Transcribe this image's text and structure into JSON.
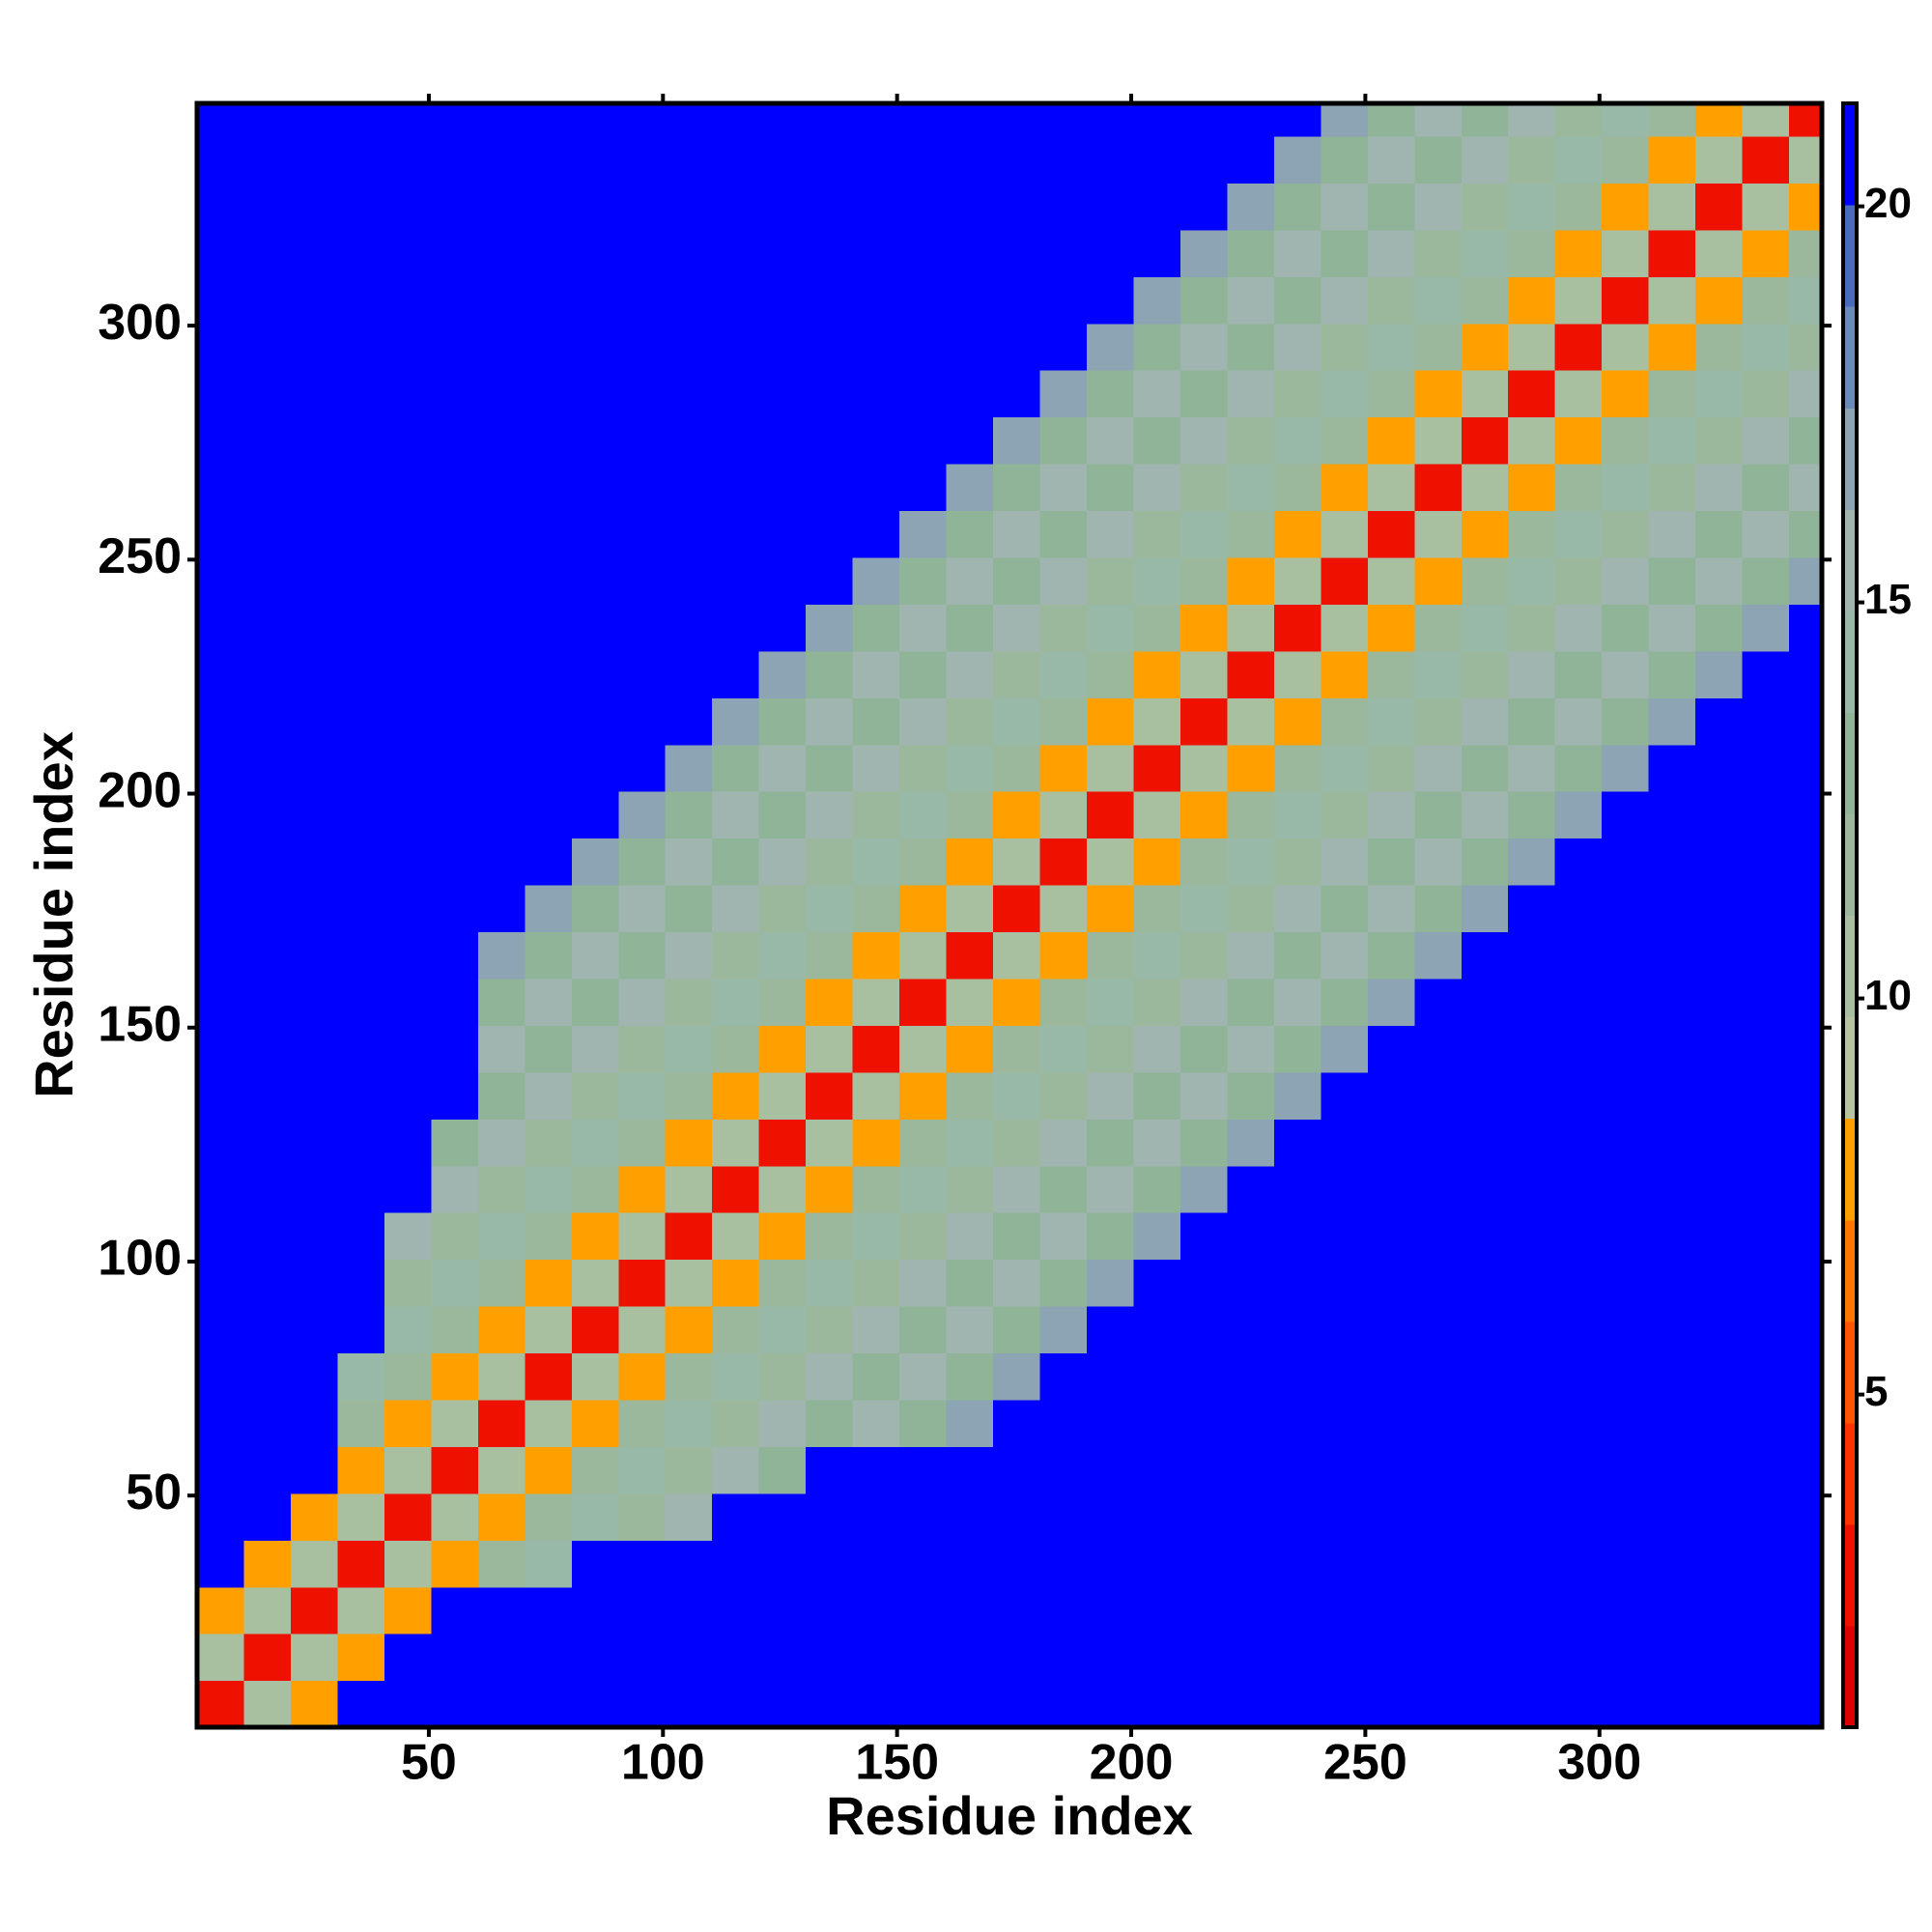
{
  "chart_data": {
    "type": "heatmap",
    "x_label": "Residue index",
    "y_label": "Residue index",
    "xlim": [
      0.5,
      347.5
    ],
    "ylim": [
      0.5,
      347.5
    ],
    "xticks": [
      50,
      100,
      150,
      200,
      250,
      300
    ],
    "yticks": [
      50,
      100,
      150,
      200,
      250,
      300
    ],
    "zlim": [
      0.8,
      21.3
    ],
    "zticks": [
      5,
      10,
      15,
      20
    ],
    "colors": [
      "#dd0000",
      "#ee1100",
      "#ff3300",
      "#ff5500",
      "#ff7700",
      "#ffa000",
      "#b8c4a0",
      "#a8c0a0",
      "#9cb89c",
      "#90b498",
      "#98b8a8",
      "#a0b4b0",
      "#8ca4b4",
      "#6a8ab8",
      "#4a6abc",
      "#0000ff"
    ],
    "bins": [
      0.5,
      10.5,
      20.5,
      30.5,
      40.5,
      50.5,
      60.5,
      70.5,
      80.5,
      90.5,
      100.5,
      110.5,
      120.5,
      130.5,
      140.5,
      150.5,
      160.5,
      170.5,
      180.5,
      190.5,
      200.5,
      210.5,
      220.5,
      230.5,
      240.5,
      250.5,
      260.5,
      270.5,
      280.5,
      290.5,
      300.5,
      310.5,
      320.5,
      330.5,
      340.5,
      347.5
    ],
    "z": [
      [
        3,
        11,
        8,
        21,
        21,
        21,
        21,
        21,
        21,
        21,
        21,
        21,
        21,
        21,
        21,
        21,
        21,
        21,
        21,
        21,
        21,
        21,
        21,
        21,
        21,
        21,
        21,
        21,
        21,
        21,
        21,
        21,
        21,
        21,
        21
      ],
      [
        11,
        3,
        11,
        8,
        21,
        21,
        21,
        21,
        21,
        21,
        21,
        21,
        21,
        21,
        21,
        21,
        21,
        21,
        21,
        21,
        21,
        21,
        21,
        21,
        21,
        21,
        21,
        21,
        21,
        21,
        21,
        21,
        21,
        21,
        21
      ],
      [
        8,
        11,
        3,
        11,
        8,
        21,
        21,
        21,
        21,
        21,
        21,
        21,
        21,
        21,
        21,
        21,
        21,
        21,
        21,
        21,
        21,
        21,
        21,
        21,
        21,
        21,
        21,
        21,
        21,
        21,
        21,
        21,
        21,
        21,
        21
      ],
      [
        21,
        8,
        11,
        3,
        11,
        8,
        12,
        14,
        21,
        21,
        21,
        21,
        21,
        21,
        21,
        21,
        21,
        21,
        21,
        21,
        21,
        21,
        21,
        21,
        21,
        21,
        21,
        21,
        21,
        21,
        21,
        21,
        21,
        21,
        21
      ],
      [
        21,
        21,
        8,
        11,
        3,
        11,
        8,
        12,
        14,
        12,
        15,
        21,
        21,
        21,
        21,
        21,
        21,
        21,
        21,
        21,
        21,
        21,
        21,
        21,
        21,
        21,
        21,
        21,
        21,
        21,
        21,
        21,
        21,
        21,
        21
      ],
      [
        21,
        21,
        21,
        8,
        11,
        3,
        11,
        8,
        12,
        14,
        12,
        15,
        13,
        21,
        21,
        21,
        21,
        21,
        21,
        21,
        21,
        21,
        21,
        21,
        21,
        21,
        21,
        21,
        21,
        21,
        21,
        21,
        21,
        21,
        21
      ],
      [
        21,
        21,
        21,
        12,
        8,
        11,
        3,
        11,
        8,
        12,
        14,
        12,
        15,
        13,
        16,
        13,
        17,
        21,
        21,
        21,
        21,
        21,
        21,
        21,
        21,
        21,
        21,
        21,
        21,
        21,
        21,
        21,
        21,
        21,
        21
      ],
      [
        21,
        21,
        21,
        14,
        12,
        8,
        11,
        3,
        11,
        8,
        12,
        14,
        12,
        15,
        13,
        16,
        13,
        17,
        21,
        21,
        21,
        21,
        21,
        21,
        21,
        21,
        21,
        21,
        21,
        21,
        21,
        21,
        21,
        21,
        21
      ],
      [
        21,
        21,
        21,
        21,
        14,
        12,
        8,
        11,
        3,
        11,
        8,
        12,
        14,
        12,
        15,
        13,
        16,
        13,
        17,
        21,
        21,
        21,
        21,
        21,
        21,
        21,
        21,
        21,
        21,
        21,
        21,
        21,
        21,
        21,
        21
      ],
      [
        21,
        21,
        21,
        21,
        12,
        14,
        12,
        8,
        11,
        3,
        11,
        8,
        12,
        14,
        12,
        15,
        13,
        16,
        13,
        17,
        21,
        21,
        21,
        21,
        21,
        21,
        21,
        21,
        21,
        21,
        21,
        21,
        21,
        21,
        21
      ],
      [
        21,
        21,
        21,
        21,
        15,
        12,
        14,
        12,
        8,
        11,
        3,
        11,
        8,
        12,
        14,
        12,
        15,
        13,
        16,
        13,
        17,
        21,
        21,
        21,
        21,
        21,
        21,
        21,
        21,
        21,
        21,
        21,
        21,
        21,
        21
      ],
      [
        21,
        21,
        21,
        21,
        21,
        15,
        12,
        14,
        12,
        8,
        11,
        3,
        11,
        8,
        12,
        14,
        12,
        15,
        13,
        16,
        13,
        17,
        21,
        21,
        21,
        21,
        21,
        21,
        21,
        21,
        21,
        21,
        21,
        21,
        21
      ],
      [
        21,
        21,
        21,
        21,
        21,
        13,
        15,
        12,
        14,
        12,
        8,
        11,
        3,
        11,
        8,
        12,
        14,
        12,
        15,
        13,
        16,
        13,
        17,
        21,
        21,
        21,
        21,
        21,
        21,
        21,
        21,
        21,
        21,
        21,
        21
      ],
      [
        21,
        21,
        21,
        21,
        21,
        21,
        13,
        15,
        12,
        14,
        12,
        8,
        11,
        3,
        11,
        8,
        12,
        14,
        12,
        15,
        13,
        16,
        13,
        17,
        21,
        21,
        21,
        21,
        21,
        21,
        21,
        21,
        21,
        21,
        21
      ],
      [
        21,
        21,
        21,
        21,
        21,
        21,
        16,
        13,
        15,
        12,
        14,
        12,
        8,
        11,
        3,
        11,
        8,
        12,
        14,
        12,
        15,
        13,
        16,
        13,
        17,
        21,
        21,
        21,
        21,
        21,
        21,
        21,
        21,
        21,
        21
      ],
      [
        21,
        21,
        21,
        21,
        21,
        21,
        13,
        16,
        13,
        15,
        12,
        14,
        12,
        8,
        11,
        3,
        11,
        8,
        12,
        14,
        12,
        15,
        13,
        16,
        13,
        17,
        21,
        21,
        21,
        21,
        21,
        21,
        21,
        21,
        21
      ],
      [
        21,
        21,
        21,
        21,
        21,
        21,
        17,
        13,
        16,
        13,
        15,
        12,
        14,
        12,
        8,
        11,
        3,
        11,
        8,
        12,
        14,
        12,
        15,
        13,
        16,
        13,
        17,
        21,
        21,
        21,
        21,
        21,
        21,
        21,
        21
      ],
      [
        21,
        21,
        21,
        21,
        21,
        21,
        21,
        17,
        13,
        16,
        13,
        15,
        12,
        14,
        12,
        8,
        11,
        3,
        11,
        8,
        12,
        14,
        12,
        15,
        13,
        16,
        13,
        17,
        21,
        21,
        21,
        21,
        21,
        21,
        21
      ],
      [
        21,
        21,
        21,
        21,
        21,
        21,
        21,
        21,
        17,
        13,
        16,
        13,
        15,
        12,
        14,
        12,
        8,
        11,
        3,
        11,
        8,
        12,
        14,
        12,
        15,
        13,
        16,
        13,
        17,
        21,
        21,
        21,
        21,
        21,
        21
      ],
      [
        21,
        21,
        21,
        21,
        21,
        21,
        21,
        21,
        21,
        17,
        13,
        16,
        13,
        15,
        12,
        14,
        12,
        8,
        11,
        3,
        11,
        8,
        12,
        14,
        12,
        15,
        13,
        16,
        13,
        17,
        21,
        21,
        21,
        21,
        21
      ],
      [
        21,
        21,
        21,
        21,
        21,
        21,
        21,
        21,
        21,
        21,
        17,
        13,
        16,
        13,
        15,
        12,
        14,
        12,
        8,
        11,
        3,
        11,
        8,
        12,
        14,
        12,
        15,
        13,
        16,
        13,
        17,
        21,
        21,
        21,
        21
      ],
      [
        21,
        21,
        21,
        21,
        21,
        21,
        21,
        21,
        21,
        21,
        21,
        17,
        13,
        16,
        13,
        15,
        12,
        14,
        12,
        8,
        11,
        3,
        11,
        8,
        12,
        14,
        12,
        15,
        13,
        16,
        13,
        17,
        21,
        21,
        21
      ],
      [
        21,
        21,
        21,
        21,
        21,
        21,
        21,
        21,
        21,
        21,
        21,
        21,
        17,
        13,
        16,
        13,
        15,
        12,
        14,
        12,
        8,
        11,
        3,
        11,
        8,
        12,
        14,
        12,
        15,
        13,
        16,
        13,
        17,
        21,
        21
      ],
      [
        21,
        21,
        21,
        21,
        21,
        21,
        21,
        21,
        21,
        21,
        21,
        21,
        21,
        17,
        13,
        16,
        13,
        15,
        12,
        14,
        12,
        8,
        11,
        3,
        11,
        8,
        12,
        14,
        12,
        15,
        13,
        16,
        13,
        17,
        21
      ],
      [
        21,
        21,
        21,
        21,
        21,
        21,
        21,
        21,
        21,
        21,
        21,
        21,
        21,
        21,
        17,
        13,
        16,
        13,
        15,
        12,
        14,
        12,
        8,
        11,
        3,
        11,
        8,
        12,
        14,
        12,
        15,
        13,
        16,
        13,
        17
      ],
      [
        21,
        21,
        21,
        21,
        21,
        21,
        21,
        21,
        21,
        21,
        21,
        21,
        21,
        21,
        21,
        17,
        13,
        16,
        13,
        15,
        12,
        14,
        12,
        8,
        11,
        3,
        11,
        8,
        12,
        14,
        12,
        15,
        13,
        16,
        13
      ],
      [
        21,
        21,
        21,
        21,
        21,
        21,
        21,
        21,
        21,
        21,
        21,
        21,
        21,
        21,
        21,
        21,
        17,
        13,
        16,
        13,
        15,
        12,
        14,
        12,
        8,
        11,
        3,
        11,
        8,
        12,
        14,
        12,
        15,
        13,
        16
      ],
      [
        21,
        21,
        21,
        21,
        21,
        21,
        21,
        21,
        21,
        21,
        21,
        21,
        21,
        21,
        21,
        21,
        21,
        17,
        13,
        16,
        13,
        15,
        12,
        14,
        12,
        8,
        11,
        3,
        11,
        8,
        12,
        14,
        12,
        15,
        13
      ],
      [
        21,
        21,
        21,
        21,
        21,
        21,
        21,
        21,
        21,
        21,
        21,
        21,
        21,
        21,
        21,
        21,
        21,
        21,
        17,
        13,
        16,
        13,
        15,
        12,
        14,
        12,
        8,
        11,
        3,
        11,
        8,
        12,
        14,
        12,
        15
      ],
      [
        21,
        21,
        21,
        21,
        21,
        21,
        21,
        21,
        21,
        21,
        21,
        21,
        21,
        21,
        21,
        21,
        21,
        21,
        21,
        17,
        13,
        16,
        13,
        15,
        12,
        14,
        12,
        8,
        11,
        3,
        11,
        8,
        12,
        14,
        12
      ],
      [
        21,
        21,
        21,
        21,
        21,
        21,
        21,
        21,
        21,
        21,
        21,
        21,
        21,
        21,
        21,
        21,
        21,
        21,
        21,
        21,
        17,
        13,
        16,
        13,
        15,
        12,
        14,
        12,
        8,
        11,
        3,
        11,
        8,
        12,
        14
      ],
      [
        21,
        21,
        21,
        21,
        21,
        21,
        21,
        21,
        21,
        21,
        21,
        21,
        21,
        21,
        21,
        21,
        21,
        21,
        21,
        21,
        21,
        17,
        13,
        16,
        13,
        15,
        12,
        14,
        12,
        8,
        11,
        3,
        11,
        8,
        12
      ],
      [
        21,
        21,
        21,
        21,
        21,
        21,
        21,
        21,
        21,
        21,
        21,
        21,
        21,
        21,
        21,
        21,
        21,
        21,
        21,
        21,
        21,
        21,
        17,
        13,
        16,
        13,
        15,
        12,
        14,
        12,
        8,
        11,
        3,
        11,
        8
      ],
      [
        21,
        21,
        21,
        21,
        21,
        21,
        21,
        21,
        21,
        21,
        21,
        21,
        21,
        21,
        21,
        21,
        21,
        21,
        21,
        21,
        21,
        21,
        21,
        17,
        13,
        16,
        13,
        15,
        12,
        14,
        12,
        8,
        11,
        3,
        11
      ],
      [
        21,
        21,
        21,
        21,
        21,
        21,
        21,
        21,
        21,
        21,
        21,
        21,
        21,
        21,
        21,
        21,
        21,
        21,
        21,
        21,
        21,
        21,
        21,
        21,
        17,
        13,
        16,
        13,
        15,
        12,
        14,
        12,
        8,
        11,
        3
      ]
    ]
  }
}
